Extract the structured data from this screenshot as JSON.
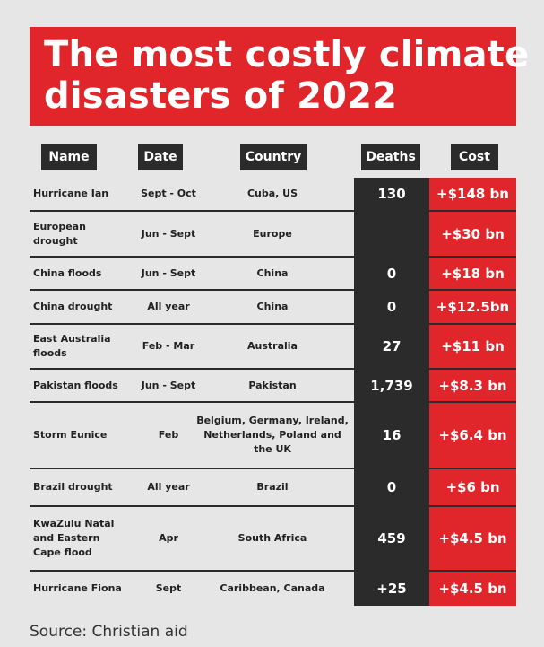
{
  "title": {
    "line1": "The most costly climate",
    "line2": "disasters of 2022"
  },
  "headers": {
    "name": "Name",
    "date": "Date",
    "country": "Country",
    "deaths": "Deaths",
    "cost": "Cost"
  },
  "rows": [
    {
      "name": "Hurricane Ian",
      "date": "Sept - Oct",
      "country": "Cuba, US",
      "deaths": "130",
      "cost": "+$148 bn"
    },
    {
      "name": "European drought",
      "date": "Jun - Sept",
      "country": "Europe",
      "deaths": "",
      "cost": "+$30 bn"
    },
    {
      "name": "China floods",
      "date": "Jun - Sept",
      "country": "China",
      "deaths": "0",
      "cost": "+$18 bn"
    },
    {
      "name": "China drought",
      "date": "All year",
      "country": "China",
      "deaths": "0",
      "cost": "+$12.5bn"
    },
    {
      "name": "East Australia floods",
      "date": "Feb - Mar",
      "country": "Australia",
      "deaths": "27",
      "cost": "+$11 bn"
    },
    {
      "name": "Pakistan floods",
      "date": "Jun - Sept",
      "country": "Pakistan",
      "deaths": "1,739",
      "cost": "+$8.3 bn"
    },
    {
      "name": "Storm Eunice",
      "date": "Feb",
      "country": "Belgium, Germany, Ireland, Netherlands, Poland and the UK",
      "deaths": "16",
      "cost": "+$6.4 bn"
    },
    {
      "name": "Brazil drought",
      "date": "All year",
      "country": "Brazil",
      "deaths": "0",
      "cost": "+$6 bn"
    },
    {
      "name": "KwaZulu Natal and Eastern Cape flood",
      "date": "Apr",
      "country": "South Africa",
      "deaths": "459",
      "cost": "+$4.5 bn"
    },
    {
      "name": "Hurricane Fiona",
      "date": "Sept",
      "country": "Caribbean, Canada",
      "deaths": "+25",
      "cost": "+$4.5 bn"
    }
  ],
  "source": "Source: Christian aid",
  "colors": {
    "accent_red": "#e0262b",
    "dark": "#2b2b2b",
    "background": "#e6e6e6"
  }
}
